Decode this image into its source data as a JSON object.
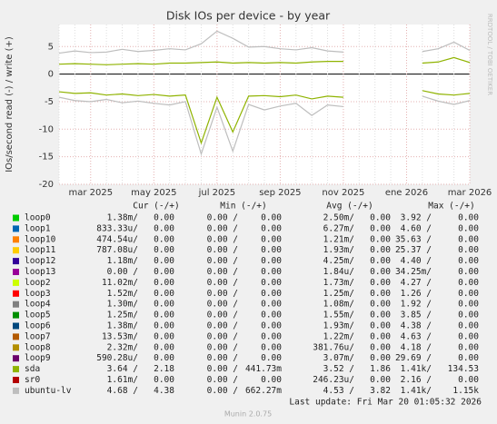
{
  "chart_data": {
    "type": "line",
    "title": "Disk IOs per device - by year",
    "y_label": "IOs/second read (-) / write (+)",
    "side_label": "RRDTOOL / TOBI OETIKER",
    "categories": [
      null,
      null,
      "mar 2025",
      null,
      null,
      null,
      "may 2025",
      null,
      null,
      null,
      "jul 2025",
      null,
      null,
      null,
      "sep 2025",
      null,
      null,
      null,
      "nov 2025",
      null,
      null,
      null,
      "ene 2026",
      null,
      null,
      null,
      "mar 2026"
    ],
    "ylim": [
      -20,
      9
    ],
    "yticks": [
      -20,
      -15,
      -10,
      -5,
      0,
      5
    ],
    "grid": true,
    "columns": [
      "Cur (-/+)",
      "Min (-/+)",
      "Avg (-/+)",
      "Max (-/+)"
    ],
    "series": [
      {
        "name": "loop0",
        "color": "#00cc00",
        "cur": [
          "1.38m/",
          "0.00"
        ],
        "min": [
          "0.00 /",
          "0.00"
        ],
        "avg": [
          "2.50m/",
          "0.00"
        ],
        "max": [
          "3.92 /",
          "0.00"
        ]
      },
      {
        "name": "loop1",
        "color": "#0066b3",
        "cur": [
          "833.33u/",
          "0.00"
        ],
        "min": [
          "0.00 /",
          "0.00"
        ],
        "avg": [
          "6.27m/",
          "0.00"
        ],
        "max": [
          "4.60 /",
          "0.00"
        ]
      },
      {
        "name": "loop10",
        "color": "#ff8000",
        "cur": [
          "474.54u/",
          "0.00"
        ],
        "min": [
          "0.00 /",
          "0.00"
        ],
        "avg": [
          "1.21m/",
          "0.00"
        ],
        "max": [
          "35.63 /",
          "0.00"
        ]
      },
      {
        "name": "loop11",
        "color": "#ffcc00",
        "cur": [
          "787.08u/",
          "0.00"
        ],
        "min": [
          "0.00 /",
          "0.00"
        ],
        "avg": [
          "1.93m/",
          "0.00"
        ],
        "max": [
          "25.37 /",
          "0.00"
        ]
      },
      {
        "name": "loop12",
        "color": "#330099",
        "cur": [
          "1.18m/",
          "0.00"
        ],
        "min": [
          "0.00 /",
          "0.00"
        ],
        "avg": [
          "4.25m/",
          "0.00"
        ],
        "max": [
          "4.40 /",
          "0.00"
        ]
      },
      {
        "name": "loop13",
        "color": "#990099",
        "cur": [
          "0.00 /",
          "0.00"
        ],
        "min": [
          "0.00 /",
          "0.00"
        ],
        "avg": [
          "1.84u/",
          "0.00"
        ],
        "max": [
          "34.25m/",
          "0.00"
        ]
      },
      {
        "name": "loop2",
        "color": "#ccff00",
        "cur": [
          "11.02m/",
          "0.00"
        ],
        "min": [
          "0.00 /",
          "0.00"
        ],
        "avg": [
          "1.73m/",
          "0.00"
        ],
        "max": [
          "4.27 /",
          "0.00"
        ]
      },
      {
        "name": "loop3",
        "color": "#ff0000",
        "cur": [
          "1.52m/",
          "0.00"
        ],
        "min": [
          "0.00 /",
          "0.00"
        ],
        "avg": [
          "1.25m/",
          "0.00"
        ],
        "max": [
          "1.26 /",
          "0.00"
        ]
      },
      {
        "name": "loop4",
        "color": "#808080",
        "cur": [
          "1.30m/",
          "0.00"
        ],
        "min": [
          "0.00 /",
          "0.00"
        ],
        "avg": [
          "1.08m/",
          "0.00"
        ],
        "max": [
          "1.92 /",
          "0.00"
        ]
      },
      {
        "name": "loop5",
        "color": "#008f00",
        "cur": [
          "1.25m/",
          "0.00"
        ],
        "min": [
          "0.00 /",
          "0.00"
        ],
        "avg": [
          "1.55m/",
          "0.00"
        ],
        "max": [
          "3.85 /",
          "0.00"
        ]
      },
      {
        "name": "loop6",
        "color": "#00487d",
        "cur": [
          "1.38m/",
          "0.00"
        ],
        "min": [
          "0.00 /",
          "0.00"
        ],
        "avg": [
          "1.93m/",
          "0.00"
        ],
        "max": [
          "4.38 /",
          "0.00"
        ]
      },
      {
        "name": "loop7",
        "color": "#b35a00",
        "cur": [
          "13.53m/",
          "0.00"
        ],
        "min": [
          "0.00 /",
          "0.00"
        ],
        "avg": [
          "1.22m/",
          "0.00"
        ],
        "max": [
          "4.63 /",
          "0.00"
        ]
      },
      {
        "name": "loop8",
        "color": "#b38f00",
        "cur": [
          "2.32m/",
          "0.00"
        ],
        "min": [
          "0.00 /",
          "0.00"
        ],
        "avg": [
          "381.76u/",
          "0.00"
        ],
        "max": [
          "4.18 /",
          "0.00"
        ]
      },
      {
        "name": "loop9",
        "color": "#6b006b",
        "cur": [
          "590.28u/",
          "0.00"
        ],
        "min": [
          "0.00 /",
          "0.00"
        ],
        "avg": [
          "3.07m/",
          "0.00"
        ],
        "max": [
          "29.69 /",
          "0.00"
        ]
      },
      {
        "name": "sda",
        "color": "#8fb300",
        "cur": [
          "3.64 /",
          "2.18"
        ],
        "min": [
          "0.00 /",
          "441.73m"
        ],
        "avg": [
          "3.52 /",
          "1.86"
        ],
        "max": [
          "1.41k/",
          "134.53"
        ],
        "write": [
          1.8,
          1.9,
          1.8,
          1.7,
          1.8,
          1.9,
          1.8,
          2.0,
          2.0,
          2.1,
          2.2,
          2.0,
          2.1,
          2.0,
          2.1,
          2.0,
          2.2,
          2.3,
          2.3,
          null,
          null,
          null,
          null,
          2.0,
          2.2,
          3.0,
          2.1
        ],
        "read": [
          -3.2,
          -3.5,
          -3.4,
          -3.8,
          -3.6,
          -3.9,
          -3.7,
          -4.0,
          -3.8,
          -12.5,
          -4.2,
          -10.5,
          -4.0,
          -3.9,
          -4.1,
          -3.8,
          -4.5,
          -4.0,
          -4.2,
          null,
          null,
          null,
          null,
          -3.0,
          -3.6,
          -3.8,
          -3.5
        ]
      },
      {
        "name": "sr0",
        "color": "#b30000",
        "cur": [
          "1.61m/",
          "0.00"
        ],
        "min": [
          "0.00 /",
          "0.00"
        ],
        "avg": [
          "246.23u/",
          "0.00"
        ],
        "max": [
          "2.16 /",
          "0.00"
        ]
      },
      {
        "name": "ubuntu-lv",
        "color": "#bebebe",
        "cur": [
          "4.68 /",
          "4.38"
        ],
        "min": [
          "0.00 /",
          "662.27m"
        ],
        "avg": [
          "4.53 /",
          "3.82"
        ],
        "max": [
          "1.41k/",
          "1.15k"
        ],
        "write": [
          3.8,
          4.2,
          3.9,
          4.0,
          4.5,
          4.1,
          4.3,
          4.6,
          4.4,
          5.5,
          7.8,
          6.5,
          4.9,
          5.0,
          4.6,
          4.4,
          4.8,
          4.2,
          4.0,
          null,
          null,
          null,
          null,
          4.1,
          4.6,
          5.8,
          4.3
        ],
        "read": [
          -4.2,
          -4.8,
          -5.0,
          -4.6,
          -5.2,
          -4.9,
          -5.3,
          -5.6,
          -5.0,
          -14.5,
          -6.0,
          -14.0,
          -5.5,
          -6.5,
          -5.8,
          -5.3,
          -7.5,
          -5.6,
          -5.9,
          null,
          null,
          null,
          null,
          -4.0,
          -4.9,
          -5.5,
          -4.8
        ]
      }
    ],
    "last_update": "Last update: Fri Mar 20 01:05:32 2026",
    "footer": "Munin 2.0.75"
  }
}
